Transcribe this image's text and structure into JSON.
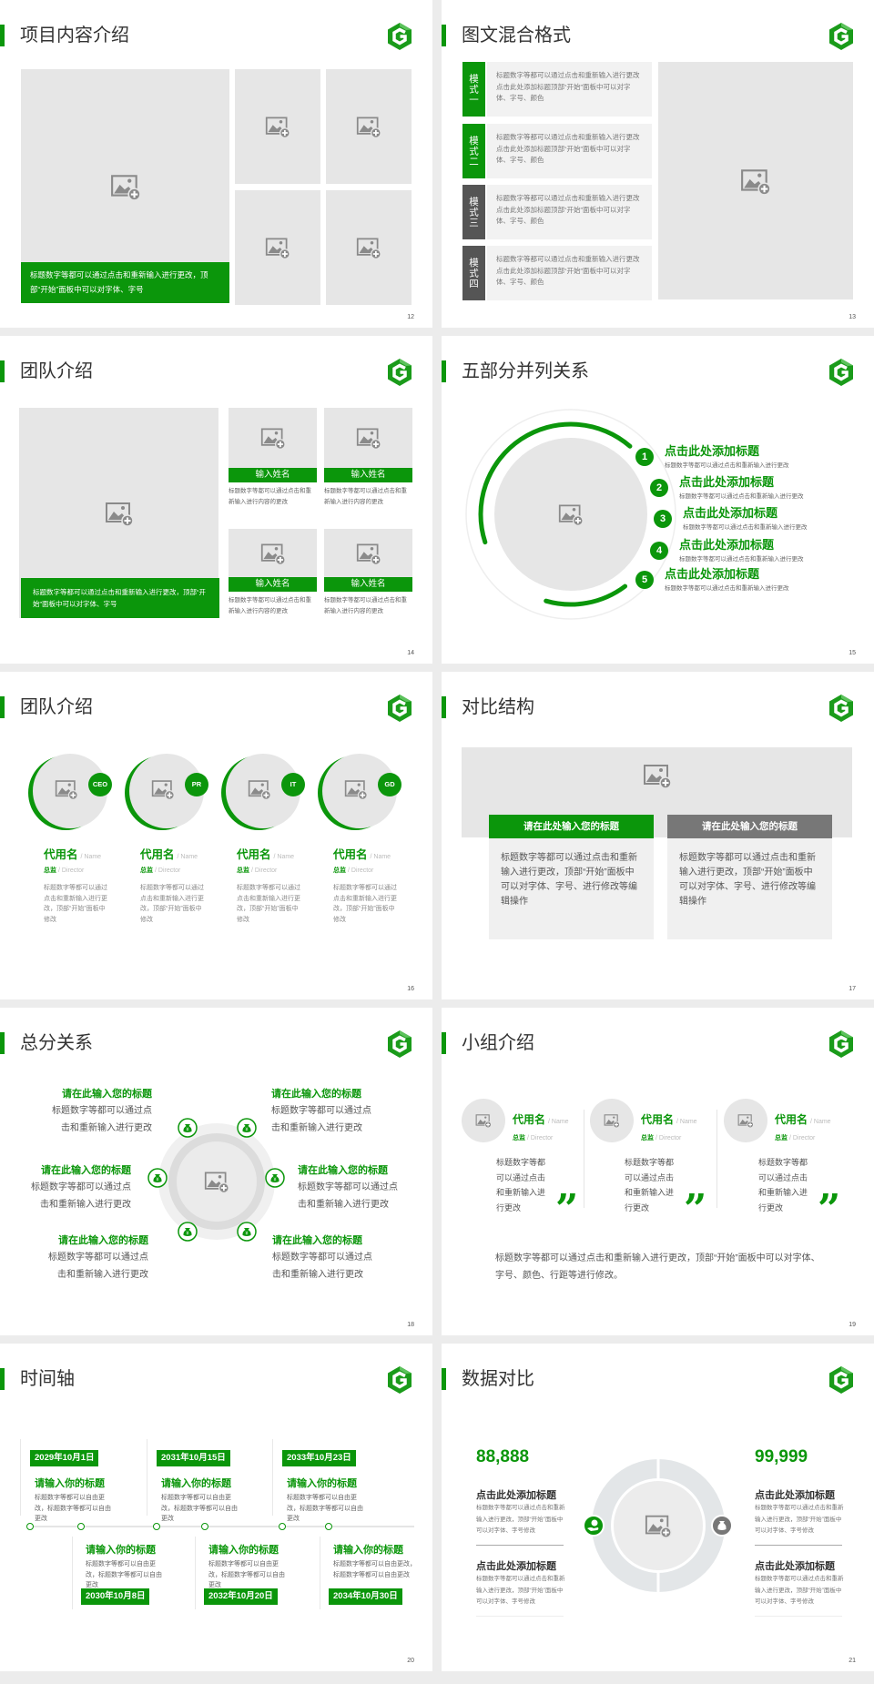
{
  "colors": {
    "accent": "#0b960b",
    "dark_gray": "#555555",
    "placeholder": "#e6e6e6",
    "panel": "#f2f2f2"
  },
  "s12": {
    "title": "项目内容介绍",
    "page": "12",
    "caption": "标题数字等都可以通过点击和重新输入进行更改，顶部“开始”面板中可以对字体、字号"
  },
  "s13": {
    "title": "图文混合格式",
    "page": "13",
    "rows": [
      {
        "mode": "模式一",
        "text": "标题数字等都可以通过点击和重新输入进行更改 点击此处添加标题顶部“开始”面板中可以对字体、字号、颜色"
      },
      {
        "mode": "模式二",
        "text": "标题数字等都可以通过点击和重新输入进行更改 点击此处添加标题顶部“开始”面板中可以对字体、字号、颜色"
      },
      {
        "mode": "模式三",
        "text": "标题数字等都可以通过点击和重新输入进行更改 点击此处添加标题顶部“开始”面板中可以对字体、字号、颜色"
      },
      {
        "mode": "模式四",
        "text": "标题数字等都可以通过点击和重新输入进行更改 点击此处添加标题顶部“开始”面板中可以对字体、字号、颜色"
      }
    ]
  },
  "s14": {
    "title": "团队介绍",
    "page": "14",
    "caption": "标题数字等都可以通过点击和重新输入进行更改，顶部“开始”面板中可以对字体、字号",
    "members": [
      {
        "name": "输入姓名",
        "desc": "标题数字等都可以通过点击和重新输入进行内容的更改"
      },
      {
        "name": "输入姓名",
        "desc": "标题数字等都可以通过点击和重新输入进行内容的更改"
      },
      {
        "name": "输入姓名",
        "desc": "标题数字等都可以通过点击和重新输入进行内容的更改"
      },
      {
        "name": "输入姓名",
        "desc": "标题数字等都可以通过点击和重新输入进行内容的更改"
      }
    ]
  },
  "s15": {
    "title": "五部分并列关系",
    "page": "15",
    "items": [
      {
        "num": "1",
        "title": "点击此处添加标题",
        "desc": "标题数字等都可以通过点击和重新输入进行更改"
      },
      {
        "num": "2",
        "title": "点击此处添加标题",
        "desc": "标题数字等都可以通过点击和重新输入进行更改"
      },
      {
        "num": "3",
        "title": "点击此处添加标题",
        "desc": "标题数字等都可以通过点击和重新输入进行更改"
      },
      {
        "num": "4",
        "title": "点击此处添加标题",
        "desc": "标题数字等都可以通过点击和重新输入进行更改"
      },
      {
        "num": "5",
        "title": "点击此处添加标题",
        "desc": "标题数字等都可以通过点击和重新输入进行更改"
      }
    ]
  },
  "s16": {
    "title": "团队介绍",
    "page": "16",
    "members": [
      {
        "badge": "CEO",
        "name": "代用名",
        "name_en": "/ Name",
        "role": "总监",
        "role_en": "/ Director",
        "desc": "标题数字等都可以通过点击和重新输入进行更改，顶部“开始”面板中修改"
      },
      {
        "badge": "PR",
        "name": "代用名",
        "name_en": "/ Name",
        "role": "总监",
        "role_en": "/ Director",
        "desc": "标题数字等都可以通过点击和重新输入进行更改，顶部“开始”面板中修改"
      },
      {
        "badge": "IT",
        "name": "代用名",
        "name_en": "/ Name",
        "role": "总监",
        "role_en": "/ Director",
        "desc": "标题数字等都可以通过点击和重新输入进行更改，顶部“开始”面板中修改"
      },
      {
        "badge": "GD",
        "name": "代用名",
        "name_en": "/ Name",
        "role": "总监",
        "role_en": "/ Director",
        "desc": "标题数字等都可以通过点击和重新输入进行更改，顶部“开始”面板中修改"
      }
    ]
  },
  "s17": {
    "title": "对比结构",
    "page": "17",
    "cards": [
      {
        "title": "请在此处输入您的标题",
        "text": "标题数字等都可以通过点击和重新输入进行更改，顶部“开始”面板中可以对字体、字号、进行修改等编辑操作"
      },
      {
        "title": "请在此处输入您的标题",
        "text": "标题数字等都可以通过点击和重新输入进行更改，顶部“开始”面板中可以对字体、字号、进行修改等编辑操作"
      }
    ]
  },
  "s18": {
    "title": "总分关系",
    "page": "18",
    "items": [
      {
        "title": "请在此输入您的标题",
        "line1": "标题数字等都可以通过点",
        "line2": "击和重新输入进行更改"
      },
      {
        "title": "请在此输入您的标题",
        "line1": "标题数字等都可以通过点",
        "line2": "击和重新输入进行更改"
      },
      {
        "title": "请在此输入您的标题",
        "line1": "标题数字等都可以通过点",
        "line2": "击和重新输入进行更改"
      },
      {
        "title": "请在此输入您的标题",
        "line1": "标题数字等都可以通过点",
        "line2": "击和重新输入进行更改"
      },
      {
        "title": "请在此输入您的标题",
        "line1": "标题数字等都可以通过点",
        "line2": "击和重新输入进行更改"
      },
      {
        "title": "请在此输入您的标题",
        "line1": "标题数字等都可以通过点",
        "line2": "击和重新输入进行更改"
      }
    ]
  },
  "s19": {
    "title": "小组介绍",
    "page": "19",
    "members": [
      {
        "name": "代用名",
        "name_en": "/ Name",
        "role": "总监",
        "role_en": "/ Director",
        "desc": "标题数字等都可以通过点击和重新输入进行更改",
        "quote": "”"
      },
      {
        "name": "代用名",
        "name_en": "/ Name",
        "role": "总监",
        "role_en": "/ Director",
        "desc": "标题数字等都可以通过点击和重新输入进行更改",
        "quote": "”"
      },
      {
        "name": "代用名",
        "name_en": "/ Name",
        "role": "总监",
        "role_en": "/ Director",
        "desc": "标题数字等都可以通过点击和重新输入进行更改",
        "quote": "”"
      }
    ],
    "summary": "标题数字等都可以通过点击和重新输入进行更改，顶部“开始”面板中可以对字体、字号、颜色、行距等进行修改。"
  },
  "s20": {
    "title": "时间轴",
    "page": "20",
    "events": [
      {
        "date": "2029年10月1日",
        "title": "请输入你的标题",
        "desc": "标题数字等都可以自由更改，标题数字等都可以自由更改"
      },
      {
        "date": "2030年10月8日",
        "title": "请输入你的标题",
        "desc": "标题数字等都可以自由更改，标题数字等都可以自由更改"
      },
      {
        "date": "2031年10月15日",
        "title": "请输入你的标题",
        "desc": "标题数字等都可以自由更改，标题数字等都可以自由更改"
      },
      {
        "date": "2032年10月20日",
        "title": "请输入你的标题",
        "desc": "标题数字等都可以自由更改，标题数字等都可以自由更改"
      },
      {
        "date": "2033年10月23日",
        "title": "请输入你的标题",
        "desc": "标题数字等都可以自由更改，标题数字等都可以自由更改"
      },
      {
        "date": "2034年10月30日",
        "title": "请输入你的标题",
        "desc": "标题数字等都可以自由更改，标题数字等都可以自由更改"
      }
    ]
  },
  "s21": {
    "title": "数据对比",
    "page": "21",
    "left": {
      "value": "88,888",
      "icon": "money-hand-icon",
      "blocks": [
        {
          "title": "点击此处添加标题",
          "desc": "标题数字等都可以通过点击和重新输入进行更改，顶部“开始”面板中可以对字体、字号修改"
        },
        {
          "title": "点击此处添加标题",
          "desc": "标题数字等都可以通过点击和重新输入进行更改，顶部“开始”面板中可以对字体、字号修改"
        }
      ]
    },
    "right": {
      "value": "99,999",
      "icon": "money-bag-icon",
      "blocks": [
        {
          "title": "点击此处添加标题",
          "desc": "标题数字等都可以通过点击和重新输入进行更改，顶部“开始”面板中可以对字体、字号修改"
        },
        {
          "title": "点击此处添加标题",
          "desc": "标题数字等都可以通过点击和重新输入进行更改，顶部“开始”面板中可以对字体、字号修改"
        }
      ]
    }
  }
}
